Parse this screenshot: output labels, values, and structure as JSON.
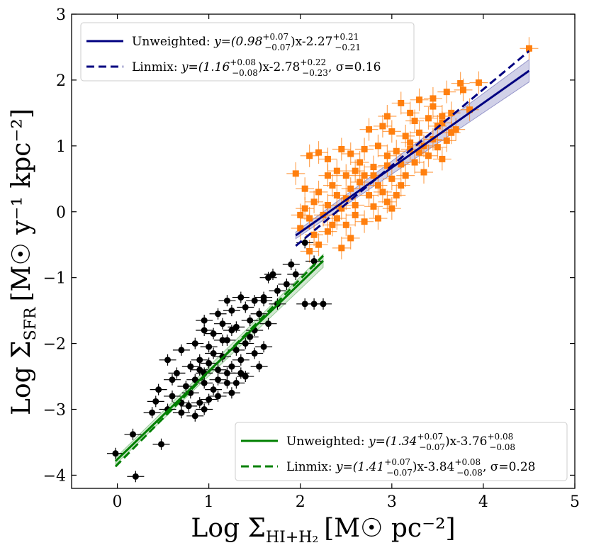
{
  "chart_data": {
    "type": "scatter",
    "xlabel": "Log Σ",
    "xlabel_sub": "HI+H₂",
    "xlabel_unit": "[M☉ pc⁻²]",
    "ylabel": "Log Σ",
    "ylabel_sub": "SFR",
    "ylabel_unit": "[M☉ y⁻¹ kpc⁻²]",
    "xlim": [
      -0.5,
      5
    ],
    "ylim": [
      -4.2,
      3
    ],
    "xticks": [
      "0",
      "1",
      "2",
      "3",
      "4",
      "5"
    ],
    "xtick_values": [
      0,
      1,
      2,
      3,
      4,
      5
    ],
    "yticks": [
      "−4",
      "−3",
      "−2",
      "−1",
      "0",
      "1",
      "2",
      "3"
    ],
    "ytick_values": [
      -4,
      -3,
      -2,
      -1,
      0,
      1,
      2,
      3
    ],
    "colors": {
      "orange": "#ff7f0e",
      "black": "#000000",
      "navy": "#000080",
      "green": "#008000"
    },
    "series": [
      {
        "name": "orange-squares",
        "marker": "square",
        "color": "#ff7f0e",
        "points": [
          [
            4.5,
            2.48
          ],
          [
            3.95,
            1.96
          ],
          [
            3.75,
            1.95
          ],
          [
            3.78,
            1.85
          ],
          [
            3.6,
            1.82
          ],
          [
            3.45,
            1.72
          ],
          [
            3.85,
            1.55
          ],
          [
            3.65,
            1.5
          ],
          [
            3.55,
            1.45
          ],
          [
            3.4,
            1.42
          ],
          [
            3.25,
            1.38
          ],
          [
            3.5,
            1.3
          ],
          [
            3.7,
            1.25
          ],
          [
            3.3,
            1.2
          ],
          [
            3.15,
            1.15
          ],
          [
            3.45,
            1.1
          ],
          [
            3.6,
            1.08
          ],
          [
            3.0,
            1.22
          ],
          [
            2.75,
            1.25
          ],
          [
            2.9,
            1.3
          ],
          [
            3.2,
            1.5
          ],
          [
            3.1,
            1.65
          ],
          [
            3.3,
            1.7
          ],
          [
            2.95,
            1.45
          ],
          [
            3.35,
            1.0
          ],
          [
            3.5,
            0.98
          ],
          [
            3.2,
            0.95
          ],
          [
            3.05,
            0.92
          ],
          [
            2.85,
            1.0
          ],
          [
            2.7,
            0.95
          ],
          [
            3.4,
            0.85
          ],
          [
            3.55,
            0.8
          ],
          [
            3.25,
            0.75
          ],
          [
            3.1,
            0.72
          ],
          [
            2.95,
            0.7
          ],
          [
            2.8,
            0.68
          ],
          [
            2.6,
            0.62
          ],
          [
            2.7,
            0.55
          ],
          [
            2.5,
            0.55
          ],
          [
            2.4,
            0.62
          ],
          [
            2.3,
            0.8
          ],
          [
            2.55,
            0.88
          ],
          [
            2.45,
            0.95
          ],
          [
            2.2,
            0.9
          ],
          [
            2.1,
            0.85
          ],
          [
            1.95,
            0.58
          ],
          [
            2.65,
            0.45
          ],
          [
            2.85,
            0.4
          ],
          [
            3.0,
            0.5
          ],
          [
            3.15,
            0.55
          ],
          [
            3.35,
            0.6
          ],
          [
            2.9,
            0.3
          ],
          [
            2.75,
            0.25
          ],
          [
            2.55,
            0.35
          ],
          [
            2.35,
            0.4
          ],
          [
            2.2,
            0.3
          ],
          [
            2.05,
            0.35
          ],
          [
            2.15,
            0.15
          ],
          [
            2.3,
            0.1
          ],
          [
            2.45,
            0.05
          ],
          [
            2.6,
            0.1
          ],
          [
            2.8,
            0.08
          ],
          [
            2.95,
            0.15
          ],
          [
            3.05,
            0.25
          ],
          [
            2.4,
            -0.1
          ],
          [
            2.25,
            -0.05
          ],
          [
            2.1,
            -0.1
          ],
          [
            2.0,
            -0.05
          ],
          [
            2.5,
            -0.2
          ],
          [
            2.7,
            -0.15
          ],
          [
            2.85,
            -0.1
          ],
          [
            2.3,
            -0.3
          ],
          [
            2.15,
            -0.35
          ],
          [
            2.0,
            -0.25
          ],
          [
            2.55,
            -0.4
          ],
          [
            2.45,
            -0.55
          ],
          [
            2.2,
            -0.5
          ],
          [
            2.1,
            -0.6
          ],
          [
            2.35,
            -0.2
          ],
          [
            2.05,
            0.05
          ],
          [
            3.45,
            1.6
          ],
          [
            3.65,
            1.2
          ],
          [
            3.2,
            1.05
          ],
          [
            2.95,
            0.85
          ],
          [
            2.65,
            0.75
          ],
          [
            2.5,
            0.2
          ],
          [
            2.8,
            0.55
          ],
          [
            3.1,
            0.4
          ],
          [
            2.4,
            0.25
          ],
          [
            3.3,
            0.9
          ],
          [
            3.55,
            1.35
          ],
          [
            2.6,
            -0.05
          ],
          [
            2.3,
            0.55
          ],
          [
            3.0,
            0.05
          ]
        ]
      },
      {
        "name": "black-circles",
        "marker": "circle",
        "color": "#000000",
        "points": [
          [
            -0.02,
            -3.67
          ],
          [
            0.2,
            -4.02
          ],
          [
            0.17,
            -3.38
          ],
          [
            0.48,
            -3.53
          ],
          [
            0.38,
            -3.05
          ],
          [
            0.42,
            -2.88
          ],
          [
            0.55,
            -3.0
          ],
          [
            0.6,
            -2.8
          ],
          [
            0.7,
            -3.05
          ],
          [
            0.78,
            -2.95
          ],
          [
            0.85,
            -3.1
          ],
          [
            0.9,
            -2.9
          ],
          [
            0.95,
            -3.0
          ],
          [
            1.0,
            -2.85
          ],
          [
            0.75,
            -2.65
          ],
          [
            0.85,
            -2.55
          ],
          [
            0.95,
            -2.6
          ],
          [
            1.05,
            -2.7
          ],
          [
            1.1,
            -2.55
          ],
          [
            1.2,
            -2.6
          ],
          [
            0.65,
            -2.45
          ],
          [
            0.8,
            -2.35
          ],
          [
            0.9,
            -2.25
          ],
          [
            1.0,
            -2.3
          ],
          [
            1.1,
            -2.4
          ],
          [
            1.25,
            -2.35
          ],
          [
            1.35,
            -2.45
          ],
          [
            1.15,
            -2.2
          ],
          [
            1.3,
            -2.1
          ],
          [
            0.55,
            -2.25
          ],
          [
            0.7,
            -2.1
          ],
          [
            0.85,
            -2.0
          ],
          [
            1.0,
            -2.05
          ],
          [
            1.2,
            -1.95
          ],
          [
            1.4,
            -2.0
          ],
          [
            1.5,
            -2.15
          ],
          [
            1.6,
            -2.05
          ],
          [
            0.95,
            -1.8
          ],
          [
            1.05,
            -1.85
          ],
          [
            1.15,
            -1.7
          ],
          [
            1.3,
            -1.75
          ],
          [
            1.45,
            -1.65
          ],
          [
            1.55,
            -1.55
          ],
          [
            1.65,
            -1.7
          ],
          [
            1.25,
            -1.5
          ],
          [
            1.4,
            -1.45
          ],
          [
            1.6,
            -1.35
          ],
          [
            1.75,
            -1.2
          ],
          [
            1.85,
            -1.1
          ],
          [
            1.65,
            -1.0
          ],
          [
            1.7,
            -0.95
          ],
          [
            1.9,
            -0.8
          ],
          [
            1.95,
            -0.95
          ],
          [
            2.05,
            -1.4
          ],
          [
            2.15,
            -1.4
          ],
          [
            2.25,
            -1.4
          ],
          [
            2.15,
            -0.75
          ],
          [
            2.05,
            -0.47
          ],
          [
            1.75,
            -1.4
          ],
          [
            1.6,
            -1.3
          ],
          [
            1.5,
            -1.35
          ],
          [
            1.35,
            -1.3
          ],
          [
            1.2,
            -1.35
          ],
          [
            0.95,
            -1.65
          ],
          [
            1.1,
            -1.55
          ],
          [
            1.25,
            -1.8
          ],
          [
            1.45,
            -1.9
          ],
          [
            1.55,
            -2.35
          ],
          [
            1.4,
            -2.5
          ],
          [
            1.25,
            -2.75
          ],
          [
            1.1,
            -2.8
          ],
          [
            0.95,
            -2.45
          ],
          [
            0.8,
            -2.75
          ],
          [
            0.6,
            -2.55
          ],
          [
            0.45,
            -2.7
          ],
          [
            1.35,
            -2.25
          ],
          [
            1.5,
            -1.8
          ],
          [
            1.05,
            -2.15
          ],
          [
            0.9,
            -2.4
          ],
          [
            1.2,
            -2.45
          ],
          [
            1.3,
            -2.6
          ],
          [
            1.15,
            -1.95
          ],
          [
            0.7,
            -2.9
          ]
        ]
      }
    ],
    "fits": [
      {
        "name": "orange-unweighted",
        "style": "solid",
        "color": "#000080",
        "slope": 0.98,
        "intercept": -2.27,
        "x_range": [
          1.95,
          4.5
        ],
        "band": [
          0.05,
          0.17
        ]
      },
      {
        "name": "orange-linmix",
        "style": "dashed",
        "color": "#000080",
        "slope": 1.16,
        "intercept": -2.78,
        "x_range": [
          1.95,
          4.5
        ]
      },
      {
        "name": "black-unweighted",
        "style": "solid",
        "color": "#008000",
        "slope": 1.34,
        "intercept": -3.76,
        "x_range": [
          -0.02,
          2.25
        ],
        "band": [
          0.05,
          0.1
        ]
      },
      {
        "name": "black-linmix",
        "style": "dashed",
        "color": "#008000",
        "slope": 1.41,
        "intercept": -3.84,
        "x_range": [
          -0.02,
          2.25
        ]
      }
    ],
    "legends": [
      {
        "position": "top-left",
        "entries": [
          {
            "style": "solid",
            "color": "#000080",
            "label": "Unweighted:",
            "eq": "y=(0.98",
            "sup": "+0.07",
            "sub": "−0.07",
            "mid": ")x-2.27",
            "sup2": "+0.21",
            "sub2": "−0.21",
            "tail": ""
          },
          {
            "style": "dashed",
            "color": "#000080",
            "label": "Linmix:",
            "eq": "y=(1.16",
            "sup": "+0.08",
            "sub": "−0.08",
            "mid": ")x-2.78",
            "sup2": "+0.22",
            "sub2": "−0.23",
            "tail": ", σ=0.16"
          }
        ]
      },
      {
        "position": "bottom-right",
        "entries": [
          {
            "style": "solid",
            "color": "#008000",
            "label": "Unweighted:",
            "eq": "y=(1.34",
            "sup": "+0.07",
            "sub": "−0.07",
            "mid": ")x-3.76",
            "sup2": "+0.08",
            "sub2": "−0.08",
            "tail": ""
          },
          {
            "style": "dashed",
            "color": "#008000",
            "label": "Linmix:",
            "eq": "y=(1.41",
            "sup": "+0.07",
            "sub": "−0.07",
            "mid": ")x-3.84",
            "sup2": "+0.08",
            "sub2": "−0.08",
            "tail": ", σ=0.28"
          }
        ]
      }
    ]
  }
}
